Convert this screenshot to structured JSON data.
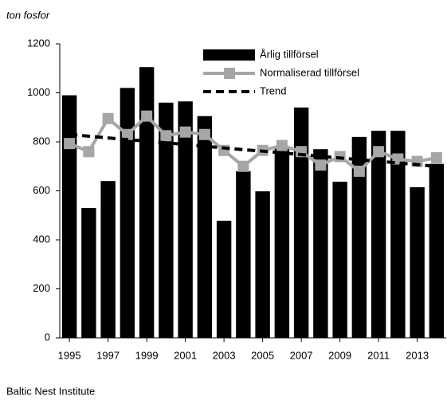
{
  "chart_data": {
    "type": "bar_line",
    "y_axis_label": "ton fosfor",
    "source": "Baltic Nest Institute",
    "x": [
      1995,
      1996,
      1997,
      1998,
      1999,
      2000,
      2001,
      2002,
      2003,
      2004,
      2005,
      2006,
      2007,
      2008,
      2009,
      2010,
      2011,
      2012,
      2013,
      2014
    ],
    "xlim": [
      1994.5,
      2014.5
    ],
    "xticks": [
      1995,
      1997,
      1999,
      2001,
      2003,
      2005,
      2007,
      2009,
      2011,
      2013
    ],
    "ylim": [
      0,
      1200
    ],
    "yticks": [
      0,
      200,
      400,
      600,
      800,
      1000,
      1200
    ],
    "legend": "top",
    "series": [
      {
        "name": "Årlig tillförsel",
        "type": "bar",
        "color": "#000000",
        "values": [
          990,
          530,
          640,
          1020,
          1105,
          960,
          965,
          905,
          478,
          680,
          598,
          780,
          940,
          770,
          637,
          820,
          845,
          845,
          615,
          710
        ]
      },
      {
        "name": "Normaliserad tillförsel",
        "type": "line",
        "color": "#a6a6a6",
        "marker": "square",
        "values": [
          793,
          760,
          895,
          830,
          905,
          825,
          840,
          830,
          765,
          700,
          765,
          785,
          760,
          705,
          740,
          680,
          760,
          730,
          720,
          735
        ]
      },
      {
        "name": "Trend",
        "type": "dashed",
        "color": "#000000",
        "values": [
          830,
          823,
          816,
          809,
          803,
          796,
          789,
          782,
          775,
          768,
          762,
          755,
          748,
          741,
          734,
          727,
          721,
          714,
          707,
          700
        ]
      }
    ]
  }
}
